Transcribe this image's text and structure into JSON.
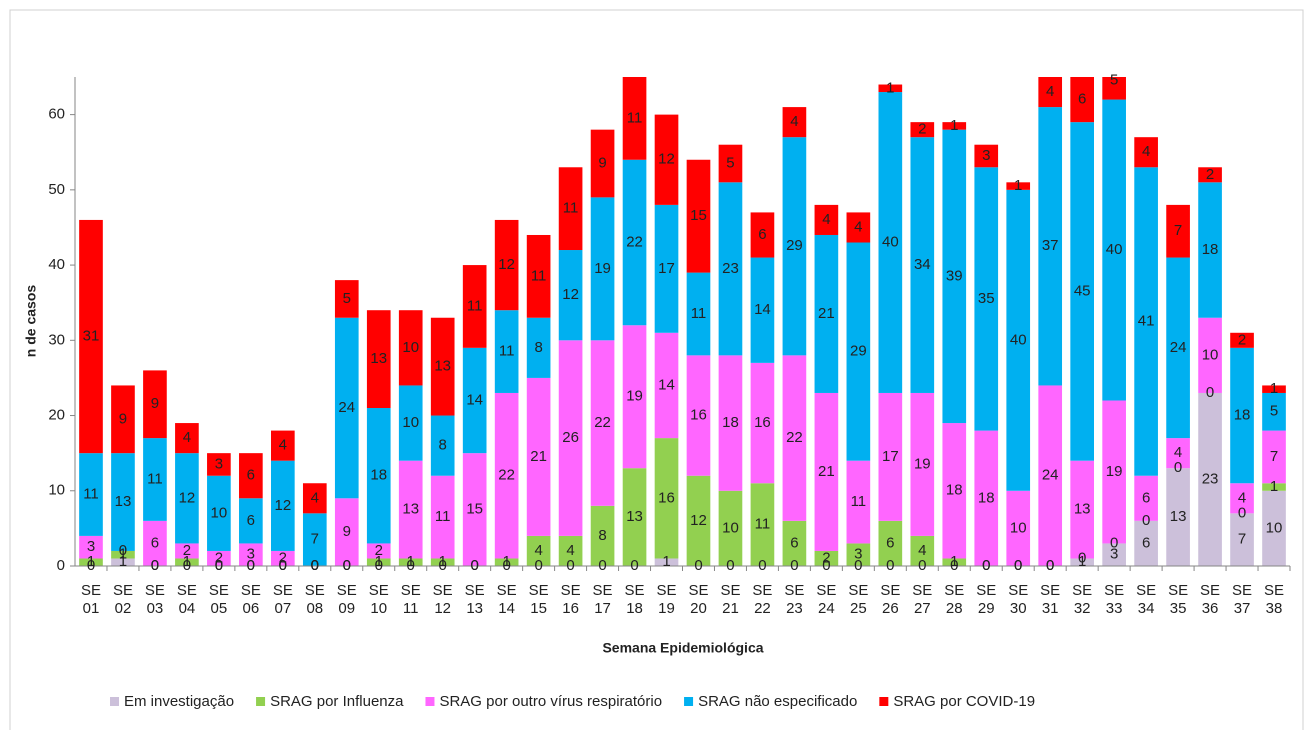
{
  "chart_data": {
    "type": "stacked_bar",
    "x_label": "Semana Epidemiológica",
    "y_label": "n de casos",
    "categories": [
      "SE 01",
      "SE 02",
      "SE 03",
      "SE 04",
      "SE 05",
      "SE 06",
      "SE 07",
      "SE 08",
      "SE 09",
      "SE 10",
      "SE 11",
      "SE 12",
      "SE 13",
      "SE 14",
      "SE 15",
      "SE 16",
      "SE 17",
      "SE 18",
      "SE 19",
      "SE 20",
      "SE 21",
      "SE 22",
      "SE 23",
      "SE 24",
      "SE 25",
      "SE 26",
      "SE 27",
      "SE 28",
      "SE 29",
      "SE 30",
      "SE 31",
      "SE 32",
      "SE 33",
      "SE 34",
      "SE 35",
      "SE 36",
      "SE 37",
      "SE 38"
    ],
    "series": [
      {
        "name": "Em investigação",
        "color": "#ccc0da",
        "values": [
          0,
          1,
          0,
          0,
          0,
          0,
          0,
          0,
          0,
          0,
          0,
          0,
          0,
          0,
          0,
          0,
          0,
          0,
          1,
          0,
          0,
          0,
          0,
          0,
          0,
          0,
          0,
          0,
          0,
          0,
          0,
          1,
          3,
          6,
          13,
          23,
          7,
          10
        ]
      },
      {
        "name": "SRAG por Influenza",
        "color": "#92d050",
        "values": [
          1,
          1,
          0,
          1,
          0,
          0,
          0,
          0,
          0,
          1,
          1,
          1,
          0,
          1,
          4,
          4,
          8,
          13,
          16,
          12,
          10,
          11,
          6,
          2,
          3,
          6,
          4,
          1,
          0,
          0,
          0,
          0,
          0,
          0,
          0,
          0,
          0,
          1
        ]
      },
      {
        "name": "SRAG por outro vírus respiratório",
        "color": "#ff66ff",
        "values": [
          3,
          0,
          6,
          2,
          2,
          3,
          2,
          0,
          9,
          2,
          13,
          11,
          15,
          22,
          21,
          26,
          22,
          19,
          14,
          16,
          18,
          16,
          22,
          21,
          11,
          17,
          19,
          18,
          18,
          10,
          24,
          13,
          19,
          6,
          4,
          10,
          4,
          7
        ]
      },
      {
        "name": "SRAG não especificado",
        "color": "#00b0f0",
        "values": [
          11,
          13,
          11,
          12,
          10,
          6,
          12,
          7,
          24,
          18,
          10,
          8,
          14,
          11,
          8,
          12,
          19,
          22,
          17,
          11,
          23,
          14,
          29,
          21,
          29,
          40,
          34,
          39,
          35,
          40,
          37,
          45,
          40,
          41,
          24,
          18,
          18,
          5
        ]
      },
      {
        "name": "SRAG por COVID-19",
        "color": "#ff0000",
        "values": [
          31,
          9,
          9,
          4,
          3,
          6,
          4,
          4,
          5,
          13,
          10,
          13,
          11,
          12,
          11,
          11,
          9,
          11,
          12,
          15,
          5,
          6,
          4,
          4,
          4,
          1,
          2,
          1,
          3,
          1,
          4,
          6,
          5,
          4,
          7,
          2,
          2,
          1
        ]
      }
    ],
    "ylim": [
      0,
      65
    ],
    "yticks": [
      0,
      10,
      20,
      30,
      40,
      50,
      60
    ],
    "grid": false,
    "legend": "bottom"
  }
}
